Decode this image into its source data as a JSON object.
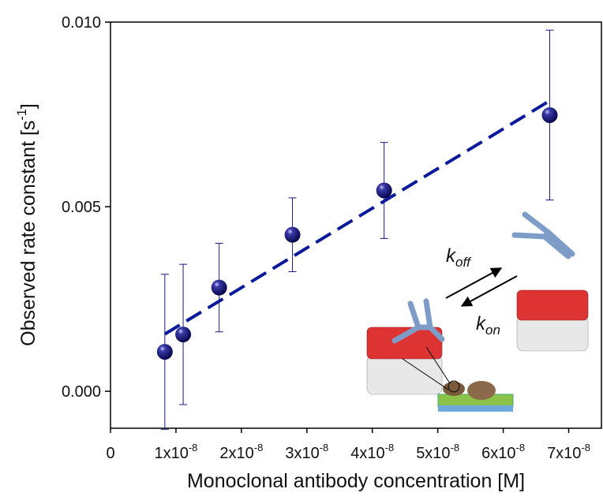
{
  "chart_data": {
    "type": "scatter",
    "xlabel": "Monoclonal antibody concentration [M]",
    "ylabel": "Observed rate constant [s-1]",
    "x": [
      8.3e-09,
      1.11e-08,
      1.66e-08,
      2.78e-08,
      4.18e-08,
      6.71e-08
    ],
    "series": [
      {
        "color": "#1a1a8c",
        "values": [
          0.00107,
          0.00154,
          0.00281,
          0.00424,
          0.00544,
          0.00748
        ],
        "errors": [
          0.0021,
          0.0019,
          0.0012,
          0.001,
          0.0013,
          0.0023
        ]
      }
    ],
    "fit": {
      "x": [
        8.3e-09,
        6.71e-08
      ],
      "values": [
        0.00155,
        0.00787
      ],
      "color": "#0a1a9a"
    },
    "xlim": [
      0,
      7.5e-08
    ],
    "ylim": [
      -0.001,
      0.01
    ],
    "xticks": [
      0,
      {
        "value": 1e-08,
        "label": "1x10-8"
      },
      {
        "value": 2e-08,
        "label": "2x10-8"
      },
      {
        "value": 3e-08,
        "label": "3x10-8"
      },
      {
        "value": 4e-08,
        "label": "4x10-8"
      },
      {
        "value": 5e-08,
        "label": "5x10-8"
      },
      {
        "value": 6e-08,
        "label": "6x10-8"
      },
      {
        "value": 7e-08,
        "label": "7x10-8"
      }
    ],
    "yticks": [
      {
        "value": 0,
        "label": "0.000"
      },
      {
        "value": 0.005,
        "label": "0.005"
      },
      {
        "value": 0.01,
        "label": "0.010"
      }
    ],
    "annotations": [
      {
        "symbol": "k",
        "subscript": "off"
      },
      {
        "symbol": "k",
        "subscript": "on"
      }
    ]
  }
}
